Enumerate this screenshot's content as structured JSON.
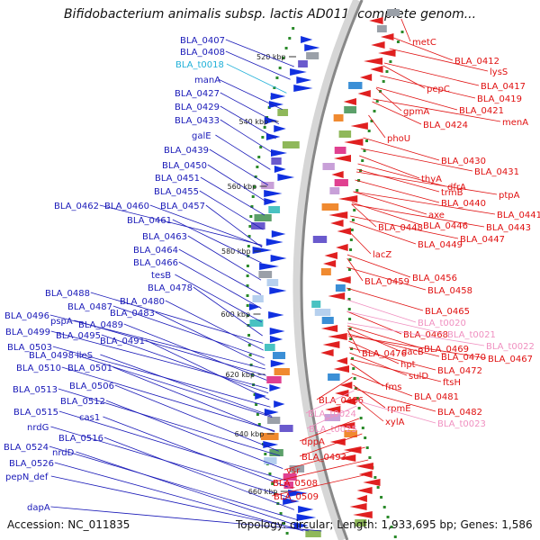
{
  "title": "Bifidobacterium animalis subsp. lactis AD011, complete genom...",
  "footer": {
    "accession": "Accession: NC_011835",
    "topology": "Topology: circular; Length: 1,933,695 bp; Genes: 1,586"
  },
  "colors": {
    "left_strand_label": "#1a1ab8",
    "right_strand_label": "#e01010",
    "trna_left": "#20b0d8",
    "trna_right": "#f090c0",
    "backbone": "#888888",
    "left_arrow": "#1030e0",
    "right_arrow": "#e02020",
    "spacer": "#2a8a2a"
  },
  "ticks": [
    "520 kbp",
    "540 kbp",
    "560 kbp",
    "580 kbp",
    "600 kbp",
    "620 kbp",
    "640 kbp",
    "660 kbp"
  ],
  "left_labels": [
    {
      "text": "BLA_0407",
      "type": "gene"
    },
    {
      "text": "BLA_0408",
      "type": "gene"
    },
    {
      "text": "BLA_t0018",
      "type": "trna"
    },
    {
      "text": "manA",
      "type": "gene"
    },
    {
      "text": "BLA_0427",
      "type": "gene"
    },
    {
      "text": "BLA_0429",
      "type": "gene"
    },
    {
      "text": "BLA_0433",
      "type": "gene"
    },
    {
      "text": "galE",
      "type": "gene"
    },
    {
      "text": "BLA_0439",
      "type": "gene"
    },
    {
      "text": "BLA_0450",
      "type": "gene"
    },
    {
      "text": "BLA_0451",
      "type": "gene"
    },
    {
      "text": "BLA_0455",
      "type": "gene"
    },
    {
      "text": "BLA_0462",
      "type": "gene"
    },
    {
      "text": "BLA_0460",
      "type": "gene"
    },
    {
      "text": "BLA_0457",
      "type": "gene"
    },
    {
      "text": "BLA_0461",
      "type": "gene"
    },
    {
      "text": "BLA_0463",
      "type": "gene"
    },
    {
      "text": "BLA_0464",
      "type": "gene"
    },
    {
      "text": "BLA_0466",
      "type": "gene"
    },
    {
      "text": "tesB",
      "type": "gene"
    },
    {
      "text": "BLA_0478",
      "type": "gene"
    },
    {
      "text": "BLA_0480",
      "type": "gene"
    },
    {
      "text": "BLA_0488",
      "type": "gene"
    },
    {
      "text": "BLA_0487",
      "type": "gene"
    },
    {
      "text": "BLA_0483",
      "type": "gene"
    },
    {
      "text": "BLA_0496",
      "type": "gene"
    },
    {
      "text": "pspA",
      "type": "gene"
    },
    {
      "text": "BLA_0489",
      "type": "gene"
    },
    {
      "text": "BLA_0499",
      "type": "gene"
    },
    {
      "text": "BLA_0495",
      "type": "gene"
    },
    {
      "text": "BLA_0491",
      "type": "gene"
    },
    {
      "text": "BLA_0503",
      "type": "gene"
    },
    {
      "text": "ileS",
      "type": "gene"
    },
    {
      "text": "BLA_0498",
      "type": "gene"
    },
    {
      "text": "BLA_0510",
      "type": "gene"
    },
    {
      "text": "BLA_0501",
      "type": "gene"
    },
    {
      "text": "BLA_0506",
      "type": "gene"
    },
    {
      "text": "BLA_0513",
      "type": "gene"
    },
    {
      "text": "BLA_0512",
      "type": "gene"
    },
    {
      "text": "BLA_0515",
      "type": "gene"
    },
    {
      "text": "cas1",
      "type": "gene"
    },
    {
      "text": "nrdG",
      "type": "gene"
    },
    {
      "text": "BLA_0516",
      "type": "gene"
    },
    {
      "text": "BLA_0524",
      "type": "gene"
    },
    {
      "text": "nrdD",
      "type": "gene"
    },
    {
      "text": "BLA_0526",
      "type": "gene"
    },
    {
      "text": "pepN_def",
      "type": "gene"
    },
    {
      "text": "dapA",
      "type": "gene"
    }
  ],
  "right_labels": [
    {
      "text": "metC",
      "type": "gene"
    },
    {
      "text": "BLA_0412",
      "type": "gene"
    },
    {
      "text": "lysS",
      "type": "gene"
    },
    {
      "text": "BLA_0417",
      "type": "gene"
    },
    {
      "text": "pepC",
      "type": "gene"
    },
    {
      "text": "BLA_0419",
      "type": "gene"
    },
    {
      "text": "gpmA",
      "type": "gene"
    },
    {
      "text": "BLA_0421",
      "type": "gene"
    },
    {
      "text": "menA",
      "type": "gene"
    },
    {
      "text": "BLA_0424",
      "type": "gene"
    },
    {
      "text": "phoU",
      "type": "gene"
    },
    {
      "text": "BLA_0430",
      "type": "gene"
    },
    {
      "text": "BLA_0431",
      "type": "gene"
    },
    {
      "text": "thyA",
      "type": "gene"
    },
    {
      "text": "dfrA",
      "type": "gene"
    },
    {
      "text": "trmB",
      "type": "gene"
    },
    {
      "text": "ptpA",
      "type": "gene"
    },
    {
      "text": "BLA_0440",
      "type": "gene"
    },
    {
      "text": "axe",
      "type": "gene"
    },
    {
      "text": "BLA_0441",
      "type": "gene"
    },
    {
      "text": "BLA_0448",
      "type": "gene"
    },
    {
      "text": "BLA_0446",
      "type": "gene"
    },
    {
      "text": "BLA_0443",
      "type": "gene"
    },
    {
      "text": "BLA_0447",
      "type": "gene"
    },
    {
      "text": "BLA_0449",
      "type": "gene"
    },
    {
      "text": "lacZ",
      "type": "gene"
    },
    {
      "text": "BLA_0456",
      "type": "gene"
    },
    {
      "text": "BLA_0459",
      "type": "gene"
    },
    {
      "text": "BLA_0458",
      "type": "gene"
    },
    {
      "text": "BLA_0465",
      "type": "gene"
    },
    {
      "text": "BLA_t0020",
      "type": "trna"
    },
    {
      "text": "BLA_0468",
      "type": "gene"
    },
    {
      "text": "BLA_t0021",
      "type": "trna"
    },
    {
      "text": "BLA_0469",
      "type": "gene"
    },
    {
      "text": "BLA_t0022",
      "type": "trna"
    },
    {
      "text": "BLA_0476",
      "type": "gene"
    },
    {
      "text": "dacB",
      "type": "gene"
    },
    {
      "text": "BLA_0470",
      "type": "gene"
    },
    {
      "text": "BLA_0467",
      "type": "gene"
    },
    {
      "text": "hpt",
      "type": "gene"
    },
    {
      "text": "BLA_0472",
      "type": "gene"
    },
    {
      "text": "sulD",
      "type": "gene"
    },
    {
      "text": "ftsH",
      "type": "gene"
    },
    {
      "text": "fms",
      "type": "gene"
    },
    {
      "text": "BLA_0481",
      "type": "gene"
    },
    {
      "text": "BLA_0486",
      "type": "gene"
    },
    {
      "text": "rpmE",
      "type": "gene"
    },
    {
      "text": "BLA_0482",
      "type": "gene"
    },
    {
      "text": "BLA_t0024",
      "type": "trna"
    },
    {
      "text": "xylA",
      "type": "gene"
    },
    {
      "text": "BLA_t0023",
      "type": "trna"
    },
    {
      "text": "BLA_t0025",
      "type": "trna"
    },
    {
      "text": "dppA",
      "type": "gene"
    },
    {
      "text": "BLA_0493",
      "type": "gene"
    },
    {
      "text": "vsr",
      "type": "gene"
    },
    {
      "text": "BLA_0508",
      "type": "gene"
    },
    {
      "text": "BLA_0509",
      "type": "gene"
    }
  ]
}
